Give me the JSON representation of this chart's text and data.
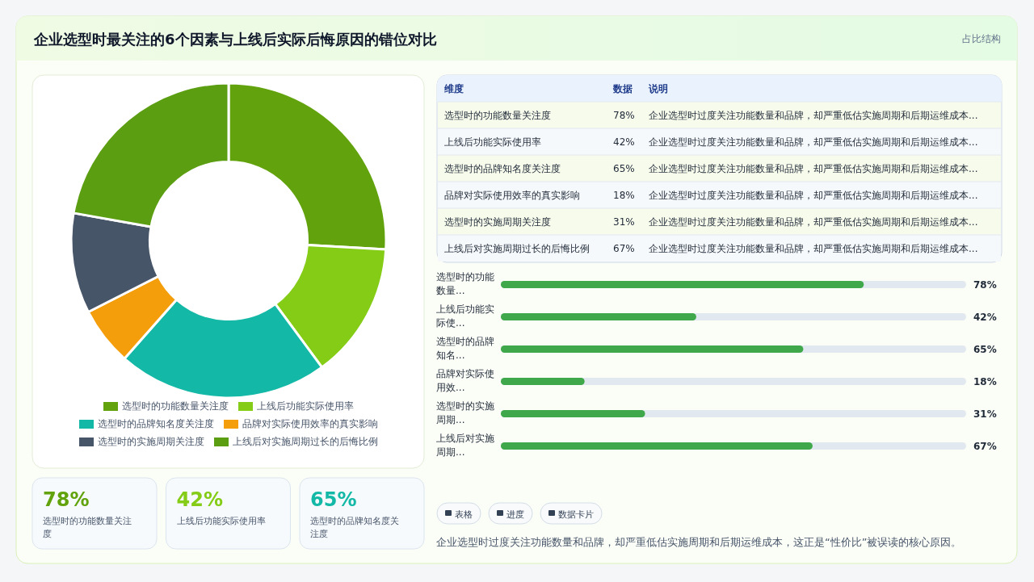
{
  "chart_data": [
    {
      "type": "donut",
      "categories": [
        "选型时的功能数量关注度",
        "上线后功能实际使用率",
        "选型时的品牌知名度关注度",
        "品牌对实际使用效率的真实影响",
        "选型时的实施周期关注度",
        "上线后对实施周期过长的后悔比例"
      ],
      "values": [
        25.9,
        14.0,
        21.6,
        6.0,
        10.3,
        22.2
      ],
      "colors": [
        "#62a30d",
        "#84cc16",
        "#14b8a6",
        "#f59e0b",
        "#475569",
        "#5c9e12"
      ],
      "legend": "bottom"
    },
    {
      "type": "other",
      "categories": [
        "选型时的功能数量关注度",
        "上线后功能实际使用率",
        "选型时的品牌知名度关注度",
        "品牌对实际使用效率的真实影响",
        "选型时的实施周期关注度",
        "上线后对实施周期过长的后悔比例"
      ],
      "values": [
        78,
        42,
        65,
        18,
        31,
        67
      ],
      "value_labels": [
        "78%",
        "42%",
        "65%",
        "18%",
        "31%",
        "67%"
      ],
      "annotations": [
        "维度",
        "数据",
        "说明",
        "企业选型时过度关注功能数量和品牌，却严重低估实施周期和后期运维成本...",
        "企业选型时过度关注功能数量和品牌，却严重低估实施周期和后期运维成本...",
        "企业选型时过度关注功能数量和品牌，却严重低估实施周期和后期运维成本...",
        "企业选型时过度关注功能数量和品牌，却严重低估实施周期和后期运维成本...",
        "企业选型时过度关注功能数量和品牌，却严重低估实施周期和后期运维成本...",
        "企业选型时过度关注功能数量和品牌，却严重低估实施周期和后期运维成本..."
      ]
    },
    {
      "type": "bar",
      "orientation": "horizontal",
      "categories": [
        "选型时的功能数量...",
        "上线后功能实际使...",
        "选型时的品牌知名...",
        "品牌对实际使用效...",
        "选型时的实施周期...",
        "上线后对实施周期..."
      ],
      "values": [
        78,
        42,
        65,
        18,
        31,
        67
      ],
      "value_labels": [
        "78%",
        "42%",
        "65%",
        "18%",
        "31%",
        "67%"
      ],
      "color": "#3fa84a",
      "xlim": [
        0,
        100
      ],
      "tick_labels": "x"
    },
    {
      "type": "other",
      "categories": [
        "选型时的功能数量关注度",
        "上线后功能实际使用率",
        "选型时的品牌知名度关注度"
      ],
      "values": [
        78,
        42,
        65
      ],
      "value_labels": [
        "78%",
        "42%",
        "65%"
      ]
    },
    {
      "type": "other",
      "title": "企业选型时最关注的6个因素与上线后实际后悔原因的错位对比",
      "subtitle": "占比结构"
    },
    {
      "type": "other",
      "annotations": [
        "表格",
        "进度",
        "数据卡片",
        "企业选型时过度关注功能数量和品牌，却严重低估实施周期和后期运维成本，这正是“性价比”被误读的核心原因。"
      ]
    }
  ]
}
